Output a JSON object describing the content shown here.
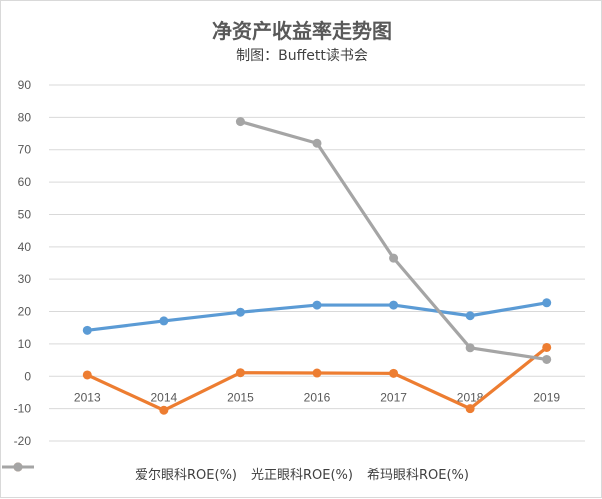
{
  "chart_data": {
    "type": "line",
    "title": "净资产收益率走势图",
    "subtitle": "制图：Buffett读书会",
    "categories": [
      "2013",
      "2014",
      "2015",
      "2016",
      "2017",
      "2018",
      "2019"
    ],
    "ylim": [
      -20,
      90
    ],
    "yticks": [
      "90",
      "80",
      "70",
      "60",
      "50",
      "40",
      "30",
      "20",
      "10",
      "0",
      "-10",
      "-20"
    ],
    "grid": true,
    "legend_position": "bottom",
    "series": [
      {
        "name": "爱尔眼科ROE(%)",
        "color": "#5b9bd5",
        "values": [
          14.2,
          17.1,
          19.8,
          22.0,
          22.0,
          18.7,
          22.7
        ]
      },
      {
        "name": "光正眼科ROE(%)",
        "color": "#ed7d31",
        "values": [
          0.4,
          -10.5,
          1.1,
          1.0,
          0.9,
          -10.0,
          8.9
        ]
      },
      {
        "name": "希玛眼科ROE(%)",
        "color": "#a5a5a5",
        "values": [
          null,
          null,
          78.7,
          72.0,
          36.5,
          8.8,
          5.2
        ]
      }
    ]
  }
}
